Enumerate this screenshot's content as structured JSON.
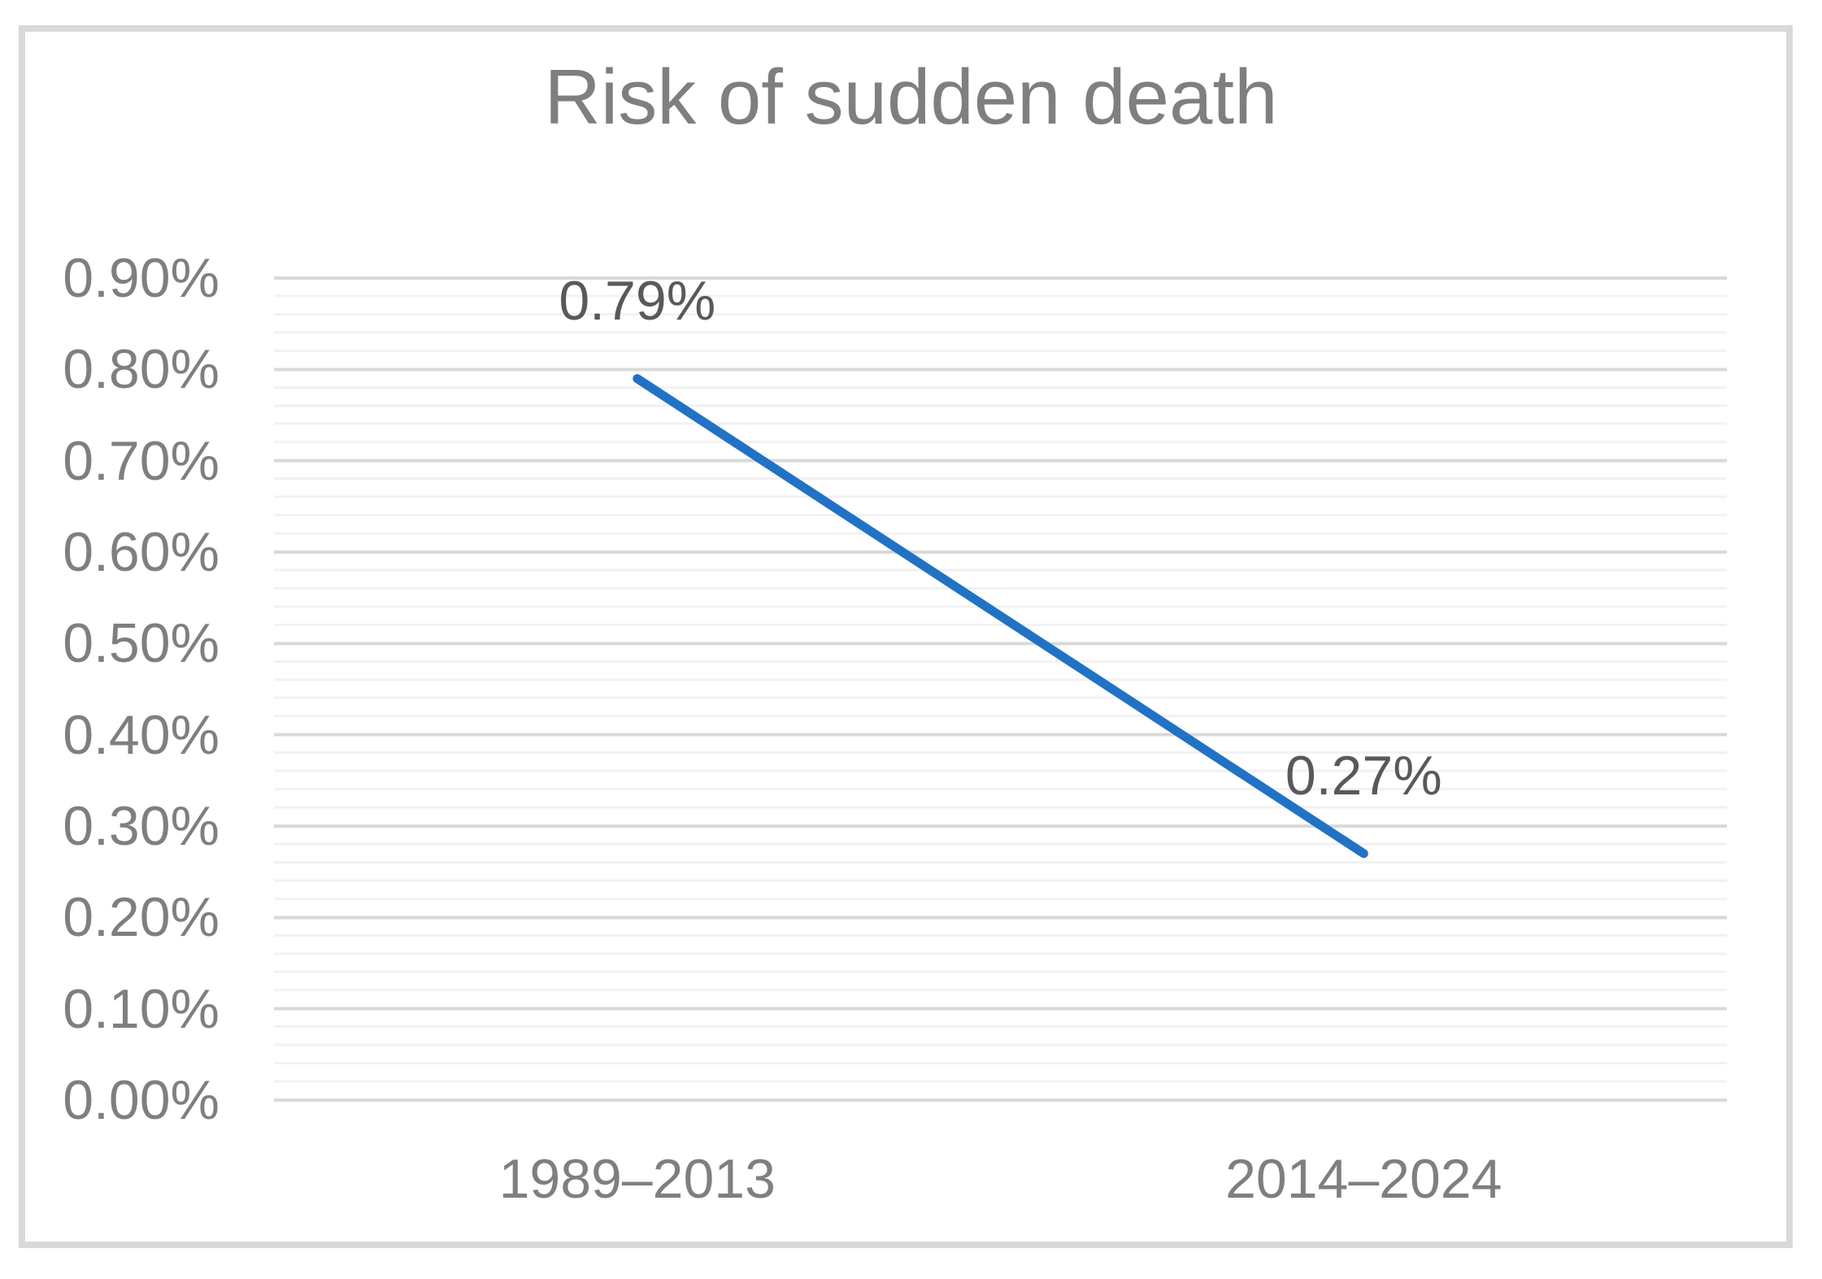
{
  "chart_data": {
    "type": "line",
    "title": "Risk of sudden death",
    "categories": [
      "1989–2013",
      "2014–2024"
    ],
    "series": [
      {
        "name": "Risk of sudden death",
        "values": [
          0.79,
          0.27
        ]
      }
    ],
    "data_labels": [
      "0.79%",
      "0.27%"
    ],
    "xlabel": "",
    "ylabel": "",
    "ylim": [
      0,
      0.9
    ],
    "major_unit": 0.1,
    "minor_unit": 0.02,
    "ytick_labels": [
      "0.90%",
      "0.80%",
      "0.70%",
      "0.60%",
      "0.50%",
      "0.40%",
      "0.30%",
      "0.20%",
      "0.10%",
      "0.00%"
    ],
    "legend": "none",
    "grid": {
      "horizontal_major": true,
      "horizontal_minor": true,
      "vertical": false
    },
    "colors": {
      "line": "#2172C4",
      "major_gridline": "#D9D9D9",
      "minor_gridline": "#F2F2F2",
      "chart_border": "#D9D9D9",
      "title_text": "#7F7F7F",
      "axis_text": "#7F7F7F",
      "data_label_text": "#595959",
      "background": "#FFFFFF"
    }
  }
}
